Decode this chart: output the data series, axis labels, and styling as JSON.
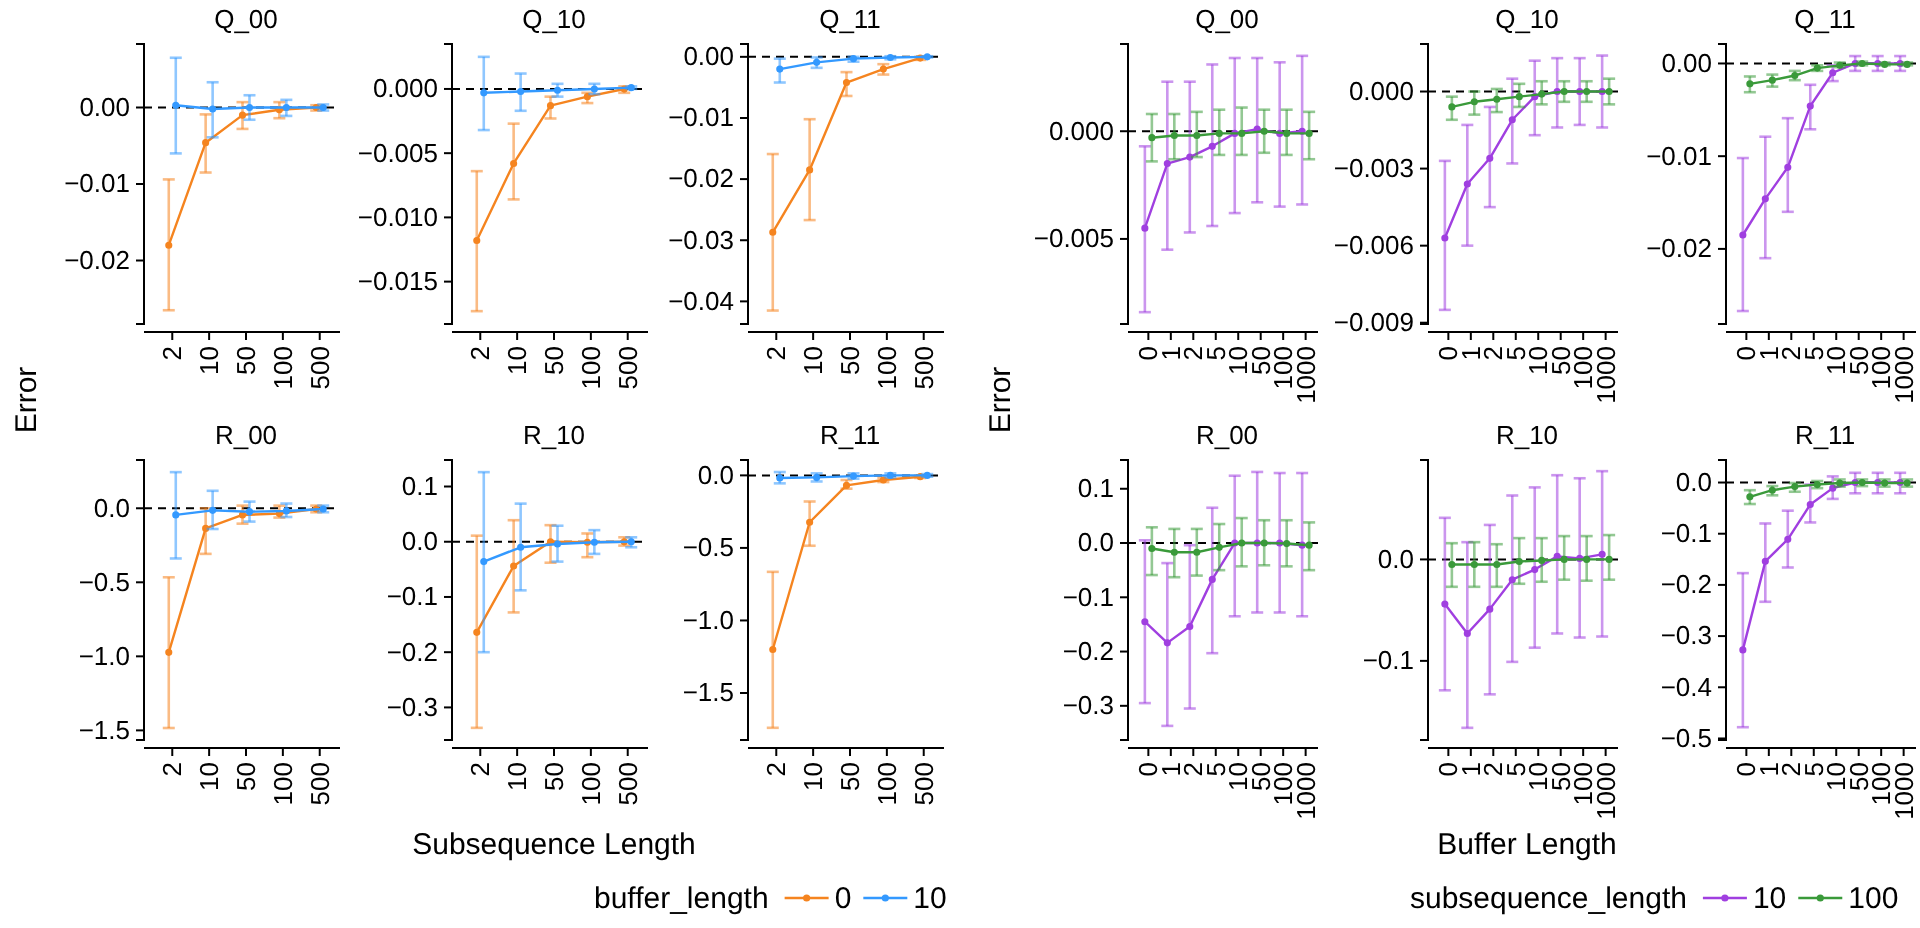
{
  "chart_data": [
    {
      "type": "line",
      "title": "Q_00",
      "ylabel": "Error",
      "categories": [
        "2",
        "10",
        "50",
        "100",
        "500"
      ],
      "ylim": [
        -0.0283,
        0.0083
      ],
      "yticks": [
        {
          "value": 0,
          "label": "0.00"
        },
        {
          "value": -0.01,
          "label": "−0.01"
        },
        {
          "value": -0.02,
          "label": "−0.02"
        }
      ],
      "marker": "circle",
      "line_style": "solid",
      "ref_lines": [
        {
          "axis": "y",
          "value": 0,
          "color": "#000000",
          "line_style": "dashed"
        }
      ],
      "series": [
        {
          "color": "#f5841f",
          "values": [
            -0.018,
            -0.0046,
            -0.001,
            -0.0003,
            0
          ],
          "errors": [
            [
              -0.0265,
              -0.0094
            ],
            [
              -0.0085,
              -0.0009
            ],
            [
              -0.0028,
              0.0007
            ],
            [
              -0.0014,
              0.0007
            ],
            [
              -0.0004,
              0.0003
            ]
          ]
        },
        {
          "color": "#3399ff",
          "values": [
            0.0003,
            -0.0002,
            0,
            0,
            0
          ],
          "errors": [
            [
              -0.006,
              0.0065
            ],
            [
              -0.0039,
              0.0033
            ],
            [
              -0.0016,
              0.0016
            ],
            [
              -0.0011,
              0.001
            ],
            [
              -0.0004,
              0.0004
            ]
          ]
        }
      ]
    },
    {
      "type": "line",
      "title": "Q_10",
      "categories": [
        "2",
        "10",
        "50",
        "100",
        "500"
      ],
      "ylim": [
        -0.0183,
        0.0035
      ],
      "yticks": [
        {
          "value": 0,
          "label": "0.000"
        },
        {
          "value": -0.005,
          "label": "−0.005"
        },
        {
          "value": -0.01,
          "label": "−0.010"
        },
        {
          "value": -0.015,
          "label": "−0.015"
        }
      ],
      "marker": "circle",
      "line_style": "solid",
      "ref_lines": [
        {
          "axis": "y",
          "value": 0,
          "color": "#000000",
          "line_style": "dashed"
        }
      ],
      "series": [
        {
          "color": "#f5841f",
          "values": [
            -0.0118,
            -0.0058,
            -0.0013,
            -0.0006,
            0
          ],
          "errors": [
            [
              -0.0173,
              -0.0064
            ],
            [
              -0.0086,
              -0.0027
            ],
            [
              -0.0023,
              -0.0006
            ],
            [
              -0.0011,
              -0.0003
            ],
            [
              -0.0003,
              0.0002
            ]
          ]
        },
        {
          "color": "#3399ff",
          "values": [
            -0.0003,
            -0.0002,
            -0.0001,
            0,
            0.0001
          ],
          "errors": [
            [
              -0.0032,
              0.0025
            ],
            [
              -0.0017,
              0.0012
            ],
            [
              -0.0006,
              0.0004
            ],
            [
              -0.0004,
              0.0004
            ],
            [
              0,
              0.0002
            ]
          ]
        }
      ]
    },
    {
      "type": "line",
      "title": "Q_11",
      "categories": [
        "2",
        "10",
        "50",
        "100",
        "500"
      ],
      "ylim": [
        -0.0437,
        0.0021
      ],
      "yticks": [
        {
          "value": 0,
          "label": "0.00"
        },
        {
          "value": -0.01,
          "label": "−0.01"
        },
        {
          "value": -0.02,
          "label": "−0.02"
        },
        {
          "value": -0.03,
          "label": "−0.03"
        },
        {
          "value": -0.04,
          "label": "−0.04"
        }
      ],
      "marker": "circle",
      "line_style": "solid",
      "ref_lines": [
        {
          "axis": "y",
          "value": 0,
          "color": "#000000",
          "line_style": "dashed"
        }
      ],
      "series": [
        {
          "color": "#f5841f",
          "values": [
            -0.0287,
            -0.0185,
            -0.0042,
            -0.002,
            -0.0002
          ],
          "errors": [
            [
              -0.0415,
              -0.0159
            ],
            [
              -0.0267,
              -0.0102
            ],
            [
              -0.0064,
              -0.0025
            ],
            [
              -0.0029,
              -0.0012
            ],
            [
              -0.0005,
              0
            ]
          ]
        },
        {
          "color": "#3399ff",
          "values": [
            -0.002,
            -0.0009,
            -0.0003,
            -0.0001,
            0
          ],
          "errors": [
            [
              -0.0042,
              -0.0003
            ],
            [
              -0.0018,
              -0.0001
            ],
            [
              -0.0008,
              0
            ],
            [
              -0.0004,
              0.0001
            ],
            [
              -0.0001,
              0.0001
            ]
          ]
        }
      ]
    },
    {
      "type": "line",
      "title": "Q_00",
      "ylabel": "Error",
      "categories": [
        "0",
        "1",
        "2",
        "5",
        "10",
        "50",
        "100",
        "1000"
      ],
      "ylim": [
        -0.00895,
        0.00405
      ],
      "yticks": [
        {
          "value": 0,
          "label": "0.000"
        },
        {
          "value": -0.005,
          "label": "−0.005"
        }
      ],
      "marker": "circle",
      "line_style": "solid",
      "ref_lines": [
        {
          "axis": "y",
          "value": 0,
          "color": "#000000",
          "line_style": "dashed"
        }
      ],
      "series": [
        {
          "color": "#a03fe0",
          "values": [
            -0.0045,
            -0.0015,
            -0.0012,
            -0.0007,
            -0.0001,
            0.0001,
            -0.0001,
            0
          ],
          "errors": [
            [
              -0.0084,
              -0.0007
            ],
            [
              -0.0055,
              0.0023
            ],
            [
              -0.0047,
              0.0023
            ],
            [
              -0.0044,
              0.0031
            ],
            [
              -0.0038,
              0.0034
            ],
            [
              -0.0033,
              0.0034
            ],
            [
              -0.0035,
              0.0032
            ],
            [
              -0.0034,
              0.0035
            ]
          ]
        },
        {
          "color": "#3a9a3a",
          "values": [
            -0.0003,
            -0.0002,
            -0.0002,
            -0.0001,
            -0.0001,
            0,
            -0.0001,
            -0.0001
          ],
          "errors": [
            [
              -0.0014,
              0.0008
            ],
            [
              -0.0013,
              0.0008
            ],
            [
              -0.0012,
              0.0009
            ],
            [
              -0.0011,
              0.001
            ],
            [
              -0.0011,
              0.0011
            ],
            [
              -0.001,
              0.001
            ],
            [
              -0.0011,
              0.001
            ],
            [
              -0.0013,
              0.0009
            ]
          ]
        }
      ]
    },
    {
      "type": "line",
      "title": "Q_10",
      "categories": [
        "0",
        "1",
        "2",
        "5",
        "10",
        "50",
        "100",
        "1000"
      ],
      "ylim": [
        -0.00905,
        0.00185
      ],
      "yticks": [
        {
          "value": 0,
          "label": "0.000"
        },
        {
          "value": -0.003,
          "label": "−0.003"
        },
        {
          "value": -0.006,
          "label": "−0.006"
        },
        {
          "value": -0.009,
          "label": "−0.009"
        }
      ],
      "marker": "circle",
      "line_style": "solid",
      "ref_lines": [
        {
          "axis": "y",
          "value": 0,
          "color": "#000000",
          "line_style": "dashed"
        }
      ],
      "series": [
        {
          "color": "#a03fe0",
          "values": [
            -0.0057,
            -0.0036,
            -0.0026,
            -0.0011,
            -0.0002,
            0,
            0,
            0
          ],
          "errors": [
            [
              -0.0085,
              -0.0027
            ],
            [
              -0.006,
              -0.0013
            ],
            [
              -0.0045,
              -0.0006
            ],
            [
              -0.0028,
              0.0005
            ],
            [
              -0.0017,
              0.0012
            ],
            [
              -0.0014,
              0.0013
            ],
            [
              -0.0013,
              0.0013
            ],
            [
              -0.0014,
              0.0014
            ]
          ]
        },
        {
          "color": "#3a9a3a",
          "values": [
            -0.0006,
            -0.0004,
            -0.0003,
            -0.0002,
            -0.0001,
            0,
            0,
            0
          ],
          "errors": [
            [
              -0.0011,
              -0.0002
            ],
            [
              -0.0009,
              0
            ],
            [
              -0.0008,
              0.0001
            ],
            [
              -0.0006,
              0.0003
            ],
            [
              -0.0005,
              0.0004
            ],
            [
              -0.0004,
              0.0004
            ],
            [
              -0.0004,
              0.0004
            ],
            [
              -0.0005,
              0.0005
            ]
          ]
        }
      ]
    },
    {
      "type": "line",
      "title": "Q_11",
      "categories": [
        "0",
        "1",
        "2",
        "5",
        "10",
        "50",
        "100",
        "1000"
      ],
      "ylim": [
        -0.0281,
        0.0021
      ],
      "yticks": [
        {
          "value": 0,
          "label": "0.00"
        },
        {
          "value": -0.01,
          "label": "−0.01"
        },
        {
          "value": -0.02,
          "label": "−0.02"
        }
      ],
      "marker": "circle",
      "line_style": "solid",
      "ref_lines": [
        {
          "axis": "y",
          "value": 0,
          "color": "#000000",
          "line_style": "dashed"
        }
      ],
      "series": [
        {
          "color": "#a03fe0",
          "values": [
            -0.0185,
            -0.0146,
            -0.0112,
            -0.0046,
            -0.001,
            0,
            0,
            0
          ],
          "errors": [
            [
              -0.0267,
              -0.0102
            ],
            [
              -0.021,
              -0.0079
            ],
            [
              -0.016,
              -0.0059
            ],
            [
              -0.0071,
              -0.0023
            ],
            [
              -0.0019,
              -0.0002
            ],
            [
              -0.0008,
              0.0008
            ],
            [
              -0.0008,
              0.0008
            ],
            [
              -0.0008,
              0.0008
            ]
          ]
        },
        {
          "color": "#3a9a3a",
          "values": [
            -0.0022,
            -0.0018,
            -0.0013,
            -0.0005,
            -0.0002,
            0,
            -0.0001,
            -0.0001
          ],
          "errors": [
            [
              -0.0031,
              -0.0014
            ],
            [
              -0.0025,
              -0.0012
            ],
            [
              -0.0018,
              -0.0008
            ],
            [
              -0.0008,
              -0.0002
            ],
            [
              -0.0004,
              0.0001
            ],
            [
              -0.0002,
              0.0002
            ],
            [
              -0.0002,
              0.0001
            ],
            [
              -0.0002,
              0.0001
            ]
          ]
        }
      ]
    },
    {
      "type": "line",
      "title": "R_00",
      "categories": [
        "2",
        "10",
        "50",
        "100",
        "500"
      ],
      "ylim": [
        -1.565,
        0.326
      ],
      "yticks": [
        {
          "value": 0,
          "label": "0.0"
        },
        {
          "value": -0.5,
          "label": "−0.5"
        },
        {
          "value": -1,
          "label": "−1.0"
        },
        {
          "value": -1.5,
          "label": "−1.5"
        }
      ],
      "marker": "circle",
      "line_style": "solid",
      "ref_lines": [
        {
          "axis": "y",
          "value": 0,
          "color": "#000000",
          "line_style": "dashed"
        }
      ],
      "series": [
        {
          "color": "#f5841f",
          "values": [
            -0.973,
            -0.136,
            -0.045,
            -0.036,
            -0.005
          ],
          "errors": [
            [
              -1.484,
              -0.466
            ],
            [
              -0.308,
              0
            ],
            [
              -0.104,
              0.018
            ],
            [
              -0.063,
              0.018
            ],
            [
              -0.027,
              0.018
            ]
          ]
        },
        {
          "color": "#3399ff",
          "values": [
            -0.045,
            -0.014,
            -0.023,
            -0.018,
            -0.005
          ],
          "errors": [
            [
              -0.339,
              0.244
            ],
            [
              -0.14,
              0.118
            ],
            [
              -0.09,
              0.045
            ],
            [
              -0.059,
              0.032
            ],
            [
              -0.027,
              0.018
            ]
          ]
        }
      ]
    },
    {
      "type": "line",
      "title": "R_10",
      "xlabel": "Subsequence Length",
      "legend_title": "buffer_length",
      "legend": "bottom",
      "categories": [
        "2",
        "10",
        "50",
        "100",
        "500"
      ],
      "ylim": [
        -0.359,
        0.148
      ],
      "yticks": [
        {
          "value": 0.1,
          "label": "0.1"
        },
        {
          "value": 0,
          "label": "0.0"
        },
        {
          "value": -0.1,
          "label": "−0.1"
        },
        {
          "value": -0.2,
          "label": "−0.2"
        },
        {
          "value": -0.3,
          "label": "−0.3"
        }
      ],
      "marker": "circle",
      "line_style": "solid",
      "ref_lines": [
        {
          "axis": "y",
          "value": 0,
          "color": "#000000",
          "line_style": "dashed"
        }
      ],
      "series": [
        {
          "name": "0",
          "color": "#f5841f",
          "values": [
            -0.164,
            -0.044,
            0,
            -0.001,
            0
          ],
          "errors": [
            [
              -0.337,
              0.011
            ],
            [
              -0.128,
              0.039
            ],
            [
              -0.038,
              0.03
            ],
            [
              -0.028,
              0.015
            ],
            [
              -0.007,
              0.008
            ]
          ]
        },
        {
          "name": "10",
          "color": "#3399ff",
          "values": [
            -0.036,
            -0.01,
            -0.004,
            -0.001,
            0
          ],
          "errors": [
            [
              -0.2,
              0.126
            ],
            [
              -0.088,
              0.069
            ],
            [
              -0.036,
              0.029
            ],
            [
              -0.022,
              0.021
            ],
            [
              -0.01,
              0.008
            ]
          ]
        }
      ]
    },
    {
      "type": "line",
      "title": "R_11",
      "categories": [
        "2",
        "10",
        "50",
        "100",
        "500"
      ],
      "ylim": [
        -1.824,
        0.106
      ],
      "yticks": [
        {
          "value": 0,
          "label": "0.0"
        },
        {
          "value": -0.5,
          "label": "−0.5"
        },
        {
          "value": -1,
          "label": "−1.0"
        },
        {
          "value": -1.5,
          "label": "−1.5"
        }
      ],
      "marker": "circle",
      "line_style": "solid",
      "ref_lines": [
        {
          "axis": "y",
          "value": 0,
          "color": "#000000",
          "line_style": "dashed"
        }
      ],
      "series": [
        {
          "color": "#f5841f",
          "values": [
            -1.2,
            -0.323,
            -0.069,
            -0.032,
            -0.009
          ],
          "errors": [
            [
              -1.74,
              -0.665
            ],
            [
              -0.485,
              -0.18
            ],
            [
              -0.092,
              -0.032
            ],
            [
              -0.046,
              -0.018
            ],
            [
              -0.018,
              0
            ]
          ]
        },
        {
          "color": "#3399ff",
          "values": [
            -0.018,
            -0.014,
            -0.005,
            0,
            0
          ],
          "errors": [
            [
              -0.055,
              0.023
            ],
            [
              -0.042,
              0.014
            ],
            [
              -0.023,
              0.014
            ],
            [
              -0.014,
              0.014
            ],
            [
              -0.009,
              0.009
            ]
          ]
        }
      ]
    },
    {
      "type": "line",
      "title": "R_00",
      "categories": [
        "0",
        "1",
        "2",
        "5",
        "10",
        "50",
        "100",
        "1000"
      ],
      "ylim": [
        -0.363,
        0.153
      ],
      "yticks": [
        {
          "value": 0.1,
          "label": "0.1"
        },
        {
          "value": 0,
          "label": "0.0"
        },
        {
          "value": -0.1,
          "label": "−0.1"
        },
        {
          "value": -0.2,
          "label": "−0.2"
        },
        {
          "value": -0.3,
          "label": "−0.3"
        }
      ],
      "marker": "circle",
      "line_style": "solid",
      "ref_lines": [
        {
          "axis": "y",
          "value": 0,
          "color": "#000000",
          "line_style": "dashed"
        }
      ],
      "series": [
        {
          "color": "#a03fe0",
          "values": [
            -0.145,
            -0.184,
            -0.154,
            -0.067,
            0,
            0,
            0,
            -0.004
          ],
          "errors": [
            [
              -0.295,
              0.005
            ],
            [
              -0.337,
              -0.037
            ],
            [
              -0.305,
              -0.004
            ],
            [
              -0.203,
              0.065
            ],
            [
              -0.135,
              0.124
            ],
            [
              -0.128,
              0.131
            ],
            [
              -0.128,
              0.129
            ],
            [
              -0.135,
              0.129
            ]
          ]
        },
        {
          "color": "#3a9a3a",
          "values": [
            -0.01,
            -0.017,
            -0.017,
            -0.008,
            0,
            0,
            -0.001,
            -0.004
          ],
          "errors": [
            [
              -0.059,
              0.029
            ],
            [
              -0.063,
              0.026
            ],
            [
              -0.06,
              0.026
            ],
            [
              -0.05,
              0.035
            ],
            [
              -0.043,
              0.046
            ],
            [
              -0.041,
              0.042
            ],
            [
              -0.043,
              0.042
            ],
            [
              -0.05,
              0.038
            ]
          ]
        }
      ]
    },
    {
      "type": "line",
      "title": "R_10",
      "xlabel": "Buffer Length",
      "legend_title": "subsequence_length",
      "legend": "bottom",
      "categories": [
        "0",
        "1",
        "2",
        "5",
        "10",
        "50",
        "100",
        "1000"
      ],
      "ylim": [
        -0.178,
        0.098
      ],
      "yticks": [
        {
          "value": 0,
          "label": "0.0"
        },
        {
          "value": -0.1,
          "label": "−0.1"
        }
      ],
      "marker": "circle",
      "line_style": "solid",
      "ref_lines": [
        {
          "axis": "y",
          "value": 0,
          "color": "#000000",
          "line_style": "dashed"
        }
      ],
      "series": [
        {
          "name": "10",
          "color": "#a03fe0",
          "values": [
            -0.044,
            -0.073,
            -0.049,
            -0.02,
            -0.01,
            0.003,
            0.001,
            0.005
          ],
          "errors": [
            [
              -0.129,
              0.041
            ],
            [
              -0.166,
              0.017
            ],
            [
              -0.133,
              0.034
            ],
            [
              -0.101,
              0.063
            ],
            [
              -0.087,
              0.071
            ],
            [
              -0.073,
              0.083
            ],
            [
              -0.077,
              0.08
            ],
            [
              -0.076,
              0.087
            ]
          ]
        },
        {
          "name": "100",
          "color": "#3a9a3a",
          "values": [
            -0.005,
            -0.005,
            -0.005,
            -0.002,
            -0.001,
            0,
            0,
            0
          ],
          "errors": [
            [
              -0.027,
              0.016
            ],
            [
              -0.027,
              0.017
            ],
            [
              -0.027,
              0.015
            ],
            [
              -0.024,
              0.021
            ],
            [
              -0.022,
              0.021
            ],
            [
              -0.02,
              0.023
            ],
            [
              -0.021,
              0.023
            ],
            [
              -0.02,
              0.024
            ]
          ]
        }
      ]
    },
    {
      "type": "line",
      "title": "R_11",
      "categories": [
        "0",
        "1",
        "2",
        "5",
        "10",
        "50",
        "100",
        "1000"
      ],
      "ylim": [
        -0.503,
        0.044
      ],
      "yticks": [
        {
          "value": 0,
          "label": "0.0"
        },
        {
          "value": -0.1,
          "label": "−0.1"
        },
        {
          "value": -0.2,
          "label": "−0.2"
        },
        {
          "value": -0.3,
          "label": "−0.3"
        },
        {
          "value": -0.4,
          "label": "−0.4"
        },
        {
          "value": -0.5,
          "label": "−0.5"
        }
      ],
      "marker": "circle",
      "line_style": "solid",
      "ref_lines": [
        {
          "axis": "y",
          "value": 0,
          "color": "#000000",
          "line_style": "dashed"
        }
      ],
      "series": [
        {
          "color": "#a03fe0",
          "values": [
            -0.327,
            -0.154,
            -0.111,
            -0.043,
            -0.011,
            0,
            0,
            0
          ],
          "errors": [
            [
              -0.478,
              -0.177
            ],
            [
              -0.233,
              -0.08
            ],
            [
              -0.166,
              -0.055
            ],
            [
              -0.078,
              -0.004
            ],
            [
              -0.032,
              0.012
            ],
            [
              -0.021,
              0.019
            ],
            [
              -0.021,
              0.019
            ],
            [
              -0.021,
              0.019
            ]
          ]
        },
        {
          "color": "#3a9a3a",
          "values": [
            -0.028,
            -0.015,
            -0.008,
            -0.004,
            -0.001,
            0,
            -0.001,
            -0.001
          ],
          "errors": [
            [
              -0.042,
              -0.015
            ],
            [
              -0.025,
              -0.007
            ],
            [
              -0.018,
              -0.001
            ],
            [
              -0.011,
              0.003
            ],
            [
              -0.008,
              0.006
            ],
            [
              -0.007,
              0.006
            ],
            [
              -0.008,
              0.006
            ],
            [
              -0.008,
              0.006
            ]
          ]
        }
      ]
    }
  ]
}
